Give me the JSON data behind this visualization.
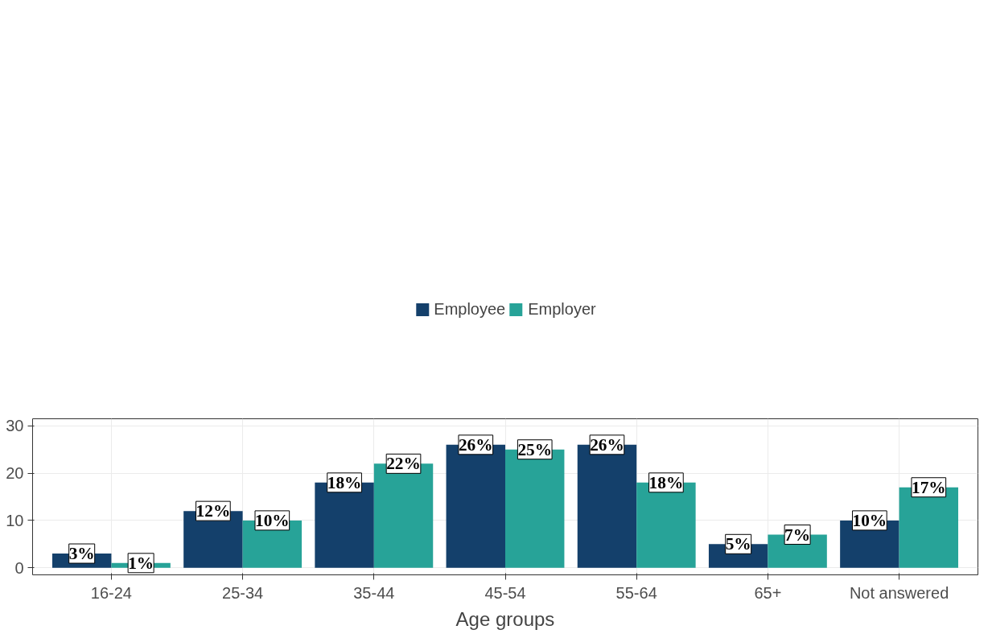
{
  "chart_data": {
    "type": "bar",
    "xlabel": "Age groups",
    "categories": [
      "16-24",
      "25-34",
      "35-44",
      "45-54",
      "55-64",
      "65+",
      "Not answered"
    ],
    "series": [
      {
        "name": "Employee",
        "color": "#14406b",
        "values": [
          3,
          12,
          18,
          26,
          26,
          5,
          10
        ],
        "value_labels": [
          "3%",
          "12%",
          "18%",
          "26%",
          "26%",
          "5%",
          "10%"
        ]
      },
      {
        "name": "Employer",
        "color": "#27a398",
        "values": [
          1,
          10,
          22,
          25,
          18,
          7,
          17
        ],
        "value_labels": [
          "1%",
          "10%",
          "22%",
          "25%",
          "18%",
          "7%",
          "17%"
        ]
      }
    ],
    "ylim": [
      -1.5,
      31.5
    ],
    "yticks": [
      0,
      10,
      20,
      30
    ],
    "grid": true,
    "legend": "top"
  }
}
